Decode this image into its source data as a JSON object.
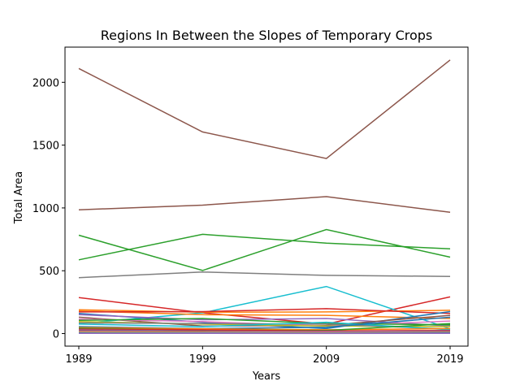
{
  "chart_data": {
    "type": "line",
    "title": "Regions In Between the Slopes of Temporary Crops",
    "xlabel": "Years",
    "ylabel": "Total Area",
    "x": [
      "1989",
      "1999",
      "2009",
      "2019"
    ],
    "ylim": [
      -100,
      2280
    ],
    "yticks": [
      0,
      500,
      1000,
      1500,
      2000
    ],
    "grid": false,
    "series": [
      {
        "color": "#8c564b",
        "values": [
          2110,
          1605,
          1393,
          2178
        ]
      },
      {
        "color": "#8c564b",
        "values": [
          985,
          1022,
          1090,
          965
        ]
      },
      {
        "color": "#2ca02c",
        "values": [
          783,
          502,
          828,
          608
        ]
      },
      {
        "color": "#2ca02c",
        "values": [
          587,
          790,
          720,
          675
        ]
      },
      {
        "color": "#7f7f7f",
        "values": [
          445,
          490,
          463,
          455
        ]
      },
      {
        "color": "#d62728",
        "values": [
          287,
          165,
          75,
          292
        ]
      },
      {
        "color": "#17becf",
        "values": [
          80,
          165,
          375,
          38
        ]
      },
      {
        "color": "#ff7f0e",
        "values": [
          190,
          170,
          172,
          185
        ]
      },
      {
        "color": "#ff7f0e",
        "values": [
          180,
          150,
          145,
          120
        ]
      },
      {
        "color": "#d62728",
        "values": [
          172,
          175,
          198,
          160
        ]
      },
      {
        "color": "#1f77b4",
        "values": [
          160,
          90,
          40,
          175
        ]
      },
      {
        "color": "#9467bd",
        "values": [
          150,
          110,
          120,
          60
        ]
      },
      {
        "color": "#8c564b",
        "values": [
          130,
          60,
          65,
          145
        ]
      },
      {
        "color": "#e377c2",
        "values": [
          115,
          95,
          60,
          100
        ]
      },
      {
        "color": "#2ca02c",
        "values": [
          105,
          120,
          80,
          70
        ]
      },
      {
        "color": "#bcbd22",
        "values": [
          95,
          75,
          60,
          55
        ]
      },
      {
        "color": "#7f7f7f",
        "values": [
          85,
          80,
          75,
          35
        ]
      },
      {
        "color": "#17becf",
        "values": [
          75,
          55,
          90,
          30
        ]
      },
      {
        "color": "#1f77b4",
        "values": [
          55,
          40,
          50,
          130
        ]
      },
      {
        "color": "#ff7f0e",
        "values": [
          48,
          38,
          30,
          40
        ]
      },
      {
        "color": "#2ca02c",
        "values": [
          42,
          28,
          25,
          80
        ]
      },
      {
        "color": "#d62728",
        "values": [
          35,
          30,
          20,
          25
        ]
      },
      {
        "color": "#9467bd",
        "values": [
          28,
          20,
          15,
          20
        ]
      },
      {
        "color": "#8c564b",
        "values": [
          22,
          18,
          12,
          15
        ]
      },
      {
        "color": "#e377c2",
        "values": [
          15,
          12,
          10,
          10
        ]
      },
      {
        "color": "#bcbd22",
        "values": [
          10,
          8,
          6,
          8
        ]
      },
      {
        "color": "#1f77b4",
        "values": [
          5,
          4,
          3,
          5
        ]
      },
      {
        "color": "#9467bd",
        "values": [
          2,
          2,
          1,
          2
        ]
      }
    ]
  }
}
